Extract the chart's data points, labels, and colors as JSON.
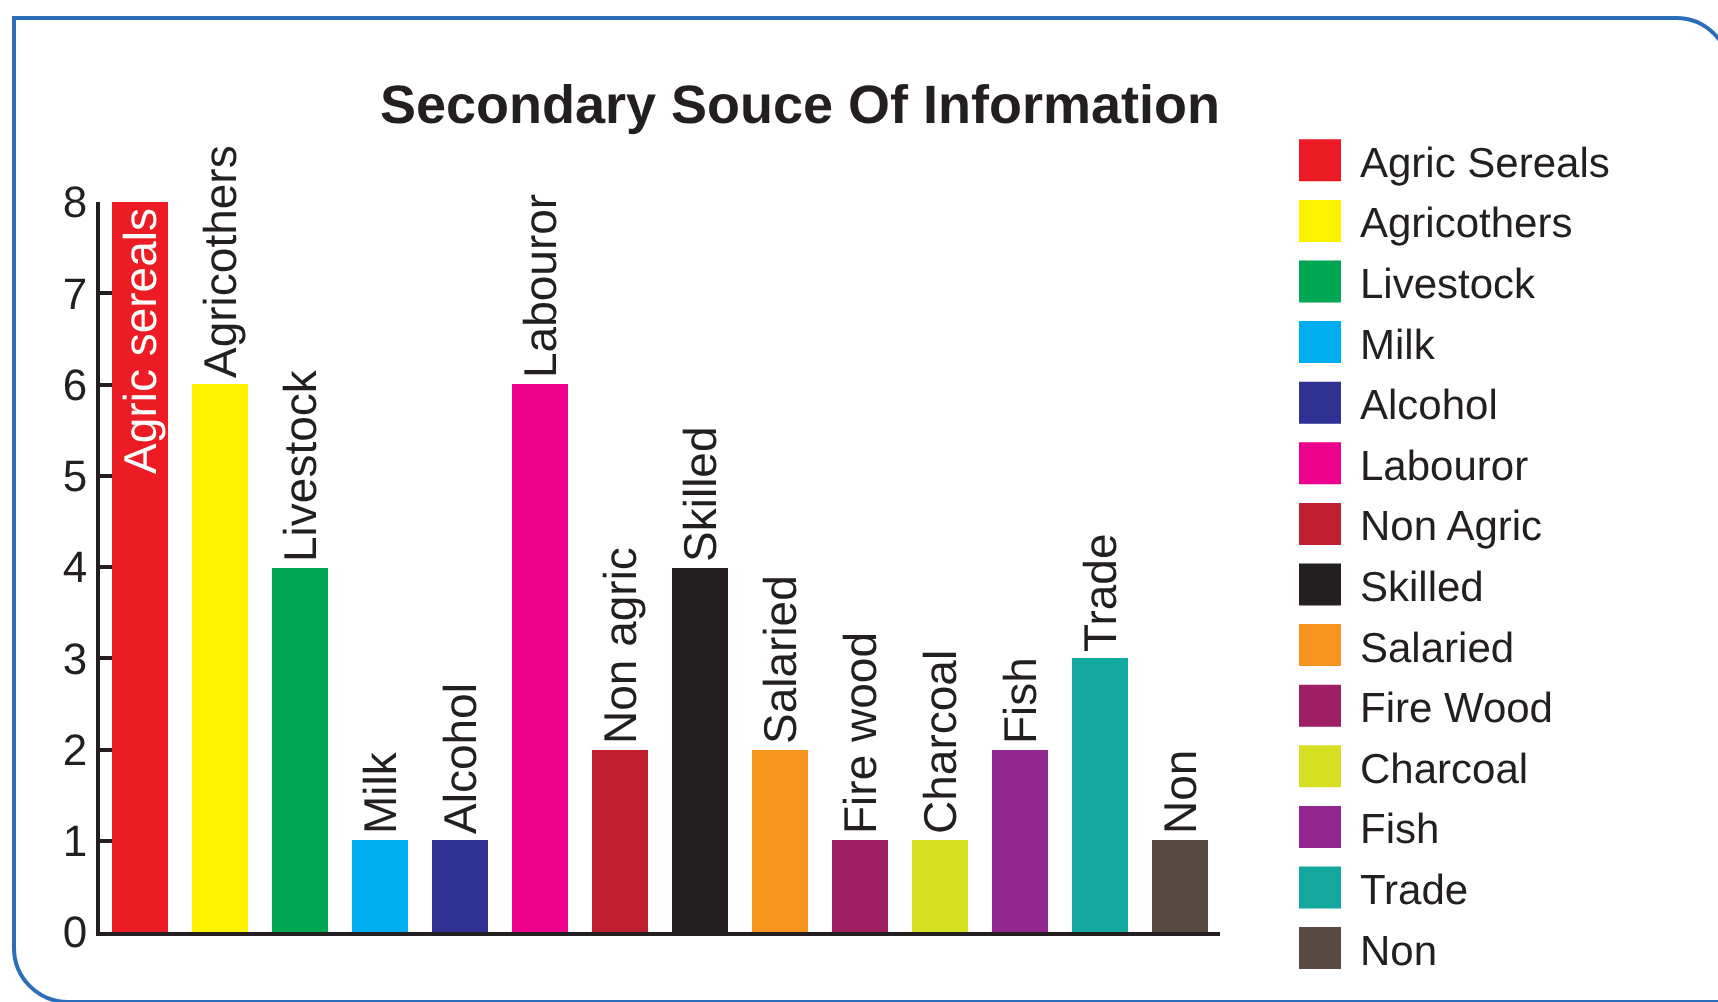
{
  "chart_data": {
    "type": "bar",
    "title": "Secondary Souce Of Information",
    "categories": [
      "Agric sereals",
      "Agricothers",
      "Livestock",
      "Milk",
      "Alcohol",
      "Labouror",
      "Non agric",
      "Skilled",
      "Salaried",
      "Fire wood",
      "Charcoal",
      "Fish",
      "Trade",
      "Non"
    ],
    "series": [
      {
        "name": "Agric Sereals",
        "color": "#ed1c24",
        "values": [
          8,
          null,
          null,
          null,
          null,
          null,
          null,
          null,
          null,
          null,
          null,
          null,
          null,
          null
        ]
      },
      {
        "name": "Agricothers",
        "color": "#fff200",
        "values": [
          null,
          6,
          null,
          null,
          null,
          null,
          null,
          null,
          null,
          null,
          null,
          null,
          null,
          null
        ]
      },
      {
        "name": "Livestock",
        "color": "#00a651",
        "values": [
          null,
          null,
          4,
          null,
          null,
          null,
          null,
          null,
          null,
          null,
          null,
          null,
          null,
          null
        ]
      },
      {
        "name": "Milk",
        "color": "#00aeef",
        "values": [
          null,
          null,
          null,
          1,
          null,
          null,
          null,
          null,
          null,
          null,
          null,
          null,
          null,
          null
        ]
      },
      {
        "name": "Alcohol",
        "color": "#2e3192",
        "values": [
          null,
          null,
          null,
          null,
          1,
          null,
          null,
          null,
          null,
          null,
          null,
          null,
          null,
          null
        ]
      },
      {
        "name": "Labouror",
        "color": "#ec008c",
        "values": [
          null,
          null,
          null,
          null,
          null,
          6,
          null,
          null,
          null,
          null,
          null,
          null,
          null,
          null
        ]
      },
      {
        "name": "Non Agric",
        "color": "#be1e2d",
        "values": [
          null,
          null,
          null,
          null,
          null,
          null,
          2,
          null,
          null,
          null,
          null,
          null,
          null,
          null
        ]
      },
      {
        "name": "Skilled",
        "color": "#231f20",
        "values": [
          null,
          null,
          null,
          null,
          null,
          null,
          null,
          4,
          null,
          null,
          null,
          null,
          null,
          null
        ]
      },
      {
        "name": "Salaried",
        "color": "#f7941d",
        "values": [
          null,
          null,
          null,
          null,
          null,
          null,
          null,
          null,
          2,
          null,
          null,
          null,
          null,
          null
        ]
      },
      {
        "name": "Fire Wood",
        "color": "#9e1f63",
        "values": [
          null,
          null,
          null,
          null,
          null,
          null,
          null,
          null,
          null,
          1,
          null,
          null,
          null,
          null
        ]
      },
      {
        "name": "Charcoal",
        "color": "#d7df23",
        "values": [
          null,
          null,
          null,
          null,
          null,
          null,
          null,
          null,
          null,
          null,
          1,
          null,
          null,
          null
        ]
      },
      {
        "name": "Fish",
        "color": "#92278f",
        "values": [
          null,
          null,
          null,
          null,
          null,
          null,
          null,
          null,
          null,
          null,
          null,
          2,
          null,
          null
        ]
      },
      {
        "name": "Trade",
        "color": "#13a89e",
        "values": [
          null,
          null,
          null,
          null,
          null,
          null,
          null,
          null,
          null,
          null,
          null,
          null,
          3,
          null
        ]
      },
      {
        "name": "Non",
        "color": "#594a42",
        "values": [
          null,
          null,
          null,
          null,
          null,
          null,
          null,
          null,
          null,
          null,
          null,
          null,
          null,
          1
        ]
      }
    ],
    "ylim": [
      0,
      8
    ],
    "yticks": [
      0,
      1,
      2,
      3,
      4,
      5,
      6,
      7,
      8
    ],
    "grid": false,
    "legend": "right"
  }
}
